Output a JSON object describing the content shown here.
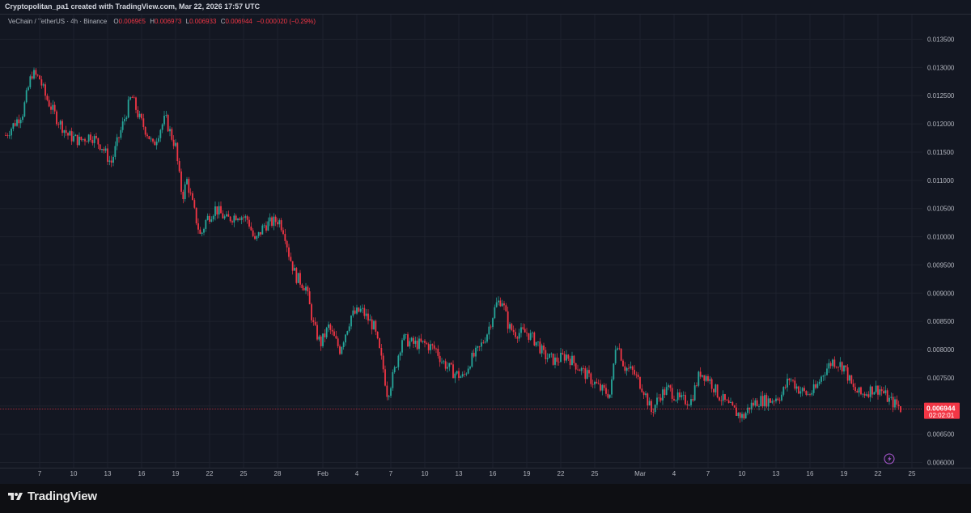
{
  "attribution": "Cryptopolitan_pa1 created with TradingView.com, Mar 22, 2026 17:57 UTC",
  "legend": {
    "symbol": "VeChain / TetherUS · 4h · Binance",
    "o_label": "O",
    "o_value": "0.006965",
    "h_label": "H",
    "h_value": "0.006973",
    "l_label": "L",
    "l_value": "0.006933",
    "c_label": "C",
    "c_value": "0.006944",
    "change": "−0.000020 (−0.29%)"
  },
  "price_tag": {
    "price": "0.006944",
    "countdown": "02:02:01"
  },
  "brand": "TradingView",
  "colors": {
    "up": "#26a69a",
    "down": "#f23645",
    "background": "#131722",
    "grid": "#1e222d",
    "axis_text": "#b2b5be"
  },
  "chart_data": {
    "type": "candlestick",
    "timeframe": "4h",
    "y_axis_ticks": [
      "0.013500",
      "0.013000",
      "0.012500",
      "0.012000",
      "0.011500",
      "0.011000",
      "0.010500",
      "0.010000",
      "0.009500",
      "0.009000",
      "0.008500",
      "0.008000",
      "0.007500",
      "0.007000",
      "0.006500",
      "0.006000"
    ],
    "ylim": [
      0.006,
      0.0135
    ],
    "x_axis_labels": [
      "7",
      "10",
      "13",
      "16",
      "19",
      "22",
      "25",
      "28",
      "Feb",
      "4",
      "7",
      "10",
      "13",
      "16",
      "19",
      "22",
      "25",
      "Mar",
      "4",
      "7",
      "10",
      "13",
      "16",
      "19",
      "22",
      "25"
    ],
    "x_axis_label_days": [
      7,
      10,
      13,
      16,
      19,
      22,
      25,
      28,
      32,
      35,
      38,
      41,
      44,
      47,
      50,
      53,
      56,
      60,
      63,
      66,
      69,
      72,
      75,
      78,
      81,
      84
    ],
    "x_axis_note": "days counted from Jan 1",
    "current_price": 0.006944,
    "close_path": [
      [
        4.0,
        0.0118
      ],
      [
        5.5,
        0.0122
      ],
      [
        6.3,
        0.0129
      ],
      [
        7.0,
        0.0128
      ],
      [
        7.5,
        0.0125
      ],
      [
        8.5,
        0.0121
      ],
      [
        9.5,
        0.0118
      ],
      [
        10.5,
        0.0117
      ],
      [
        11.5,
        0.0118
      ],
      [
        12.5,
        0.0116
      ],
      [
        13.3,
        0.0113
      ],
      [
        14.5,
        0.0121
      ],
      [
        15.1,
        0.0125
      ],
      [
        15.8,
        0.0121
      ],
      [
        16.6,
        0.0118
      ],
      [
        17.0,
        0.0116
      ],
      [
        17.6,
        0.0119
      ],
      [
        18.1,
        0.0121
      ],
      [
        18.6,
        0.0118
      ],
      [
        19.0,
        0.0116
      ],
      [
        19.3,
        0.0111
      ],
      [
        19.6,
        0.0107
      ],
      [
        20.0,
        0.011
      ],
      [
        20.7,
        0.0104
      ],
      [
        21.2,
        0.01
      ],
      [
        21.7,
        0.0103
      ],
      [
        22.5,
        0.0105
      ],
      [
        23.5,
        0.0103
      ],
      [
        24.5,
        0.0104
      ],
      [
        25.4,
        0.0103
      ],
      [
        26.0,
        0.0099
      ],
      [
        26.8,
        0.0102
      ],
      [
        28.1,
        0.0103
      ],
      [
        28.6,
        0.0101
      ],
      [
        29.0,
        0.0097
      ],
      [
        29.6,
        0.0093
      ],
      [
        30.5,
        0.0091
      ],
      [
        31.2,
        0.0084
      ],
      [
        31.8,
        0.0081
      ],
      [
        32.5,
        0.0084
      ],
      [
        33.5,
        0.008
      ],
      [
        34.5,
        0.0086
      ],
      [
        35.4,
        0.0087
      ],
      [
        36.5,
        0.0084
      ],
      [
        37.3,
        0.0077
      ],
      [
        37.7,
        0.0072
      ],
      [
        38.3,
        0.0076
      ],
      [
        39.0,
        0.0082
      ],
      [
        40.0,
        0.0081
      ],
      [
        41.0,
        0.0081
      ],
      [
        42.0,
        0.008
      ],
      [
        42.5,
        0.0078
      ],
      [
        43.5,
        0.0076
      ],
      [
        44.4,
        0.0075
      ],
      [
        45.0,
        0.0078
      ],
      [
        45.8,
        0.008
      ],
      [
        46.5,
        0.0083
      ],
      [
        47.3,
        0.0088
      ],
      [
        47.8,
        0.0089
      ],
      [
        48.4,
        0.0084
      ],
      [
        49.0,
        0.0083
      ],
      [
        50.0,
        0.0083
      ],
      [
        51.0,
        0.0081
      ],
      [
        51.5,
        0.0079
      ],
      [
        52.5,
        0.0078
      ],
      [
        53.5,
        0.0079
      ],
      [
        54.5,
        0.0077
      ],
      [
        55.5,
        0.0075
      ],
      [
        56.5,
        0.0073
      ],
      [
        57.4,
        0.0072
      ],
      [
        57.9,
        0.0082
      ],
      [
        58.6,
        0.0077
      ],
      [
        59.4,
        0.0076
      ],
      [
        60.3,
        0.0073
      ],
      [
        61.0,
        0.0069
      ],
      [
        61.8,
        0.0072
      ],
      [
        62.5,
        0.0073
      ],
      [
        63.5,
        0.0071
      ],
      [
        64.5,
        0.0071
      ],
      [
        65.3,
        0.0076
      ],
      [
        66.0,
        0.0075
      ],
      [
        66.9,
        0.0072
      ],
      [
        67.8,
        0.007
      ],
      [
        68.4,
        0.0069
      ],
      [
        69.1,
        0.0068
      ],
      [
        69.7,
        0.007
      ],
      [
        70.5,
        0.0071
      ],
      [
        71.5,
        0.0071
      ],
      [
        72.5,
        0.0072
      ],
      [
        73.2,
        0.0075
      ],
      [
        74.0,
        0.0073
      ],
      [
        74.8,
        0.0072
      ],
      [
        75.5,
        0.0073
      ],
      [
        76.2,
        0.0076
      ],
      [
        77.0,
        0.0078
      ],
      [
        78.0,
        0.0077
      ],
      [
        78.8,
        0.0073
      ],
      [
        79.5,
        0.0072
      ],
      [
        80.5,
        0.0073
      ],
      [
        81.2,
        0.0073
      ],
      [
        82.0,
        0.0071
      ],
      [
        82.8,
        0.007
      ],
      [
        83.0,
        0.006944
      ]
    ]
  }
}
